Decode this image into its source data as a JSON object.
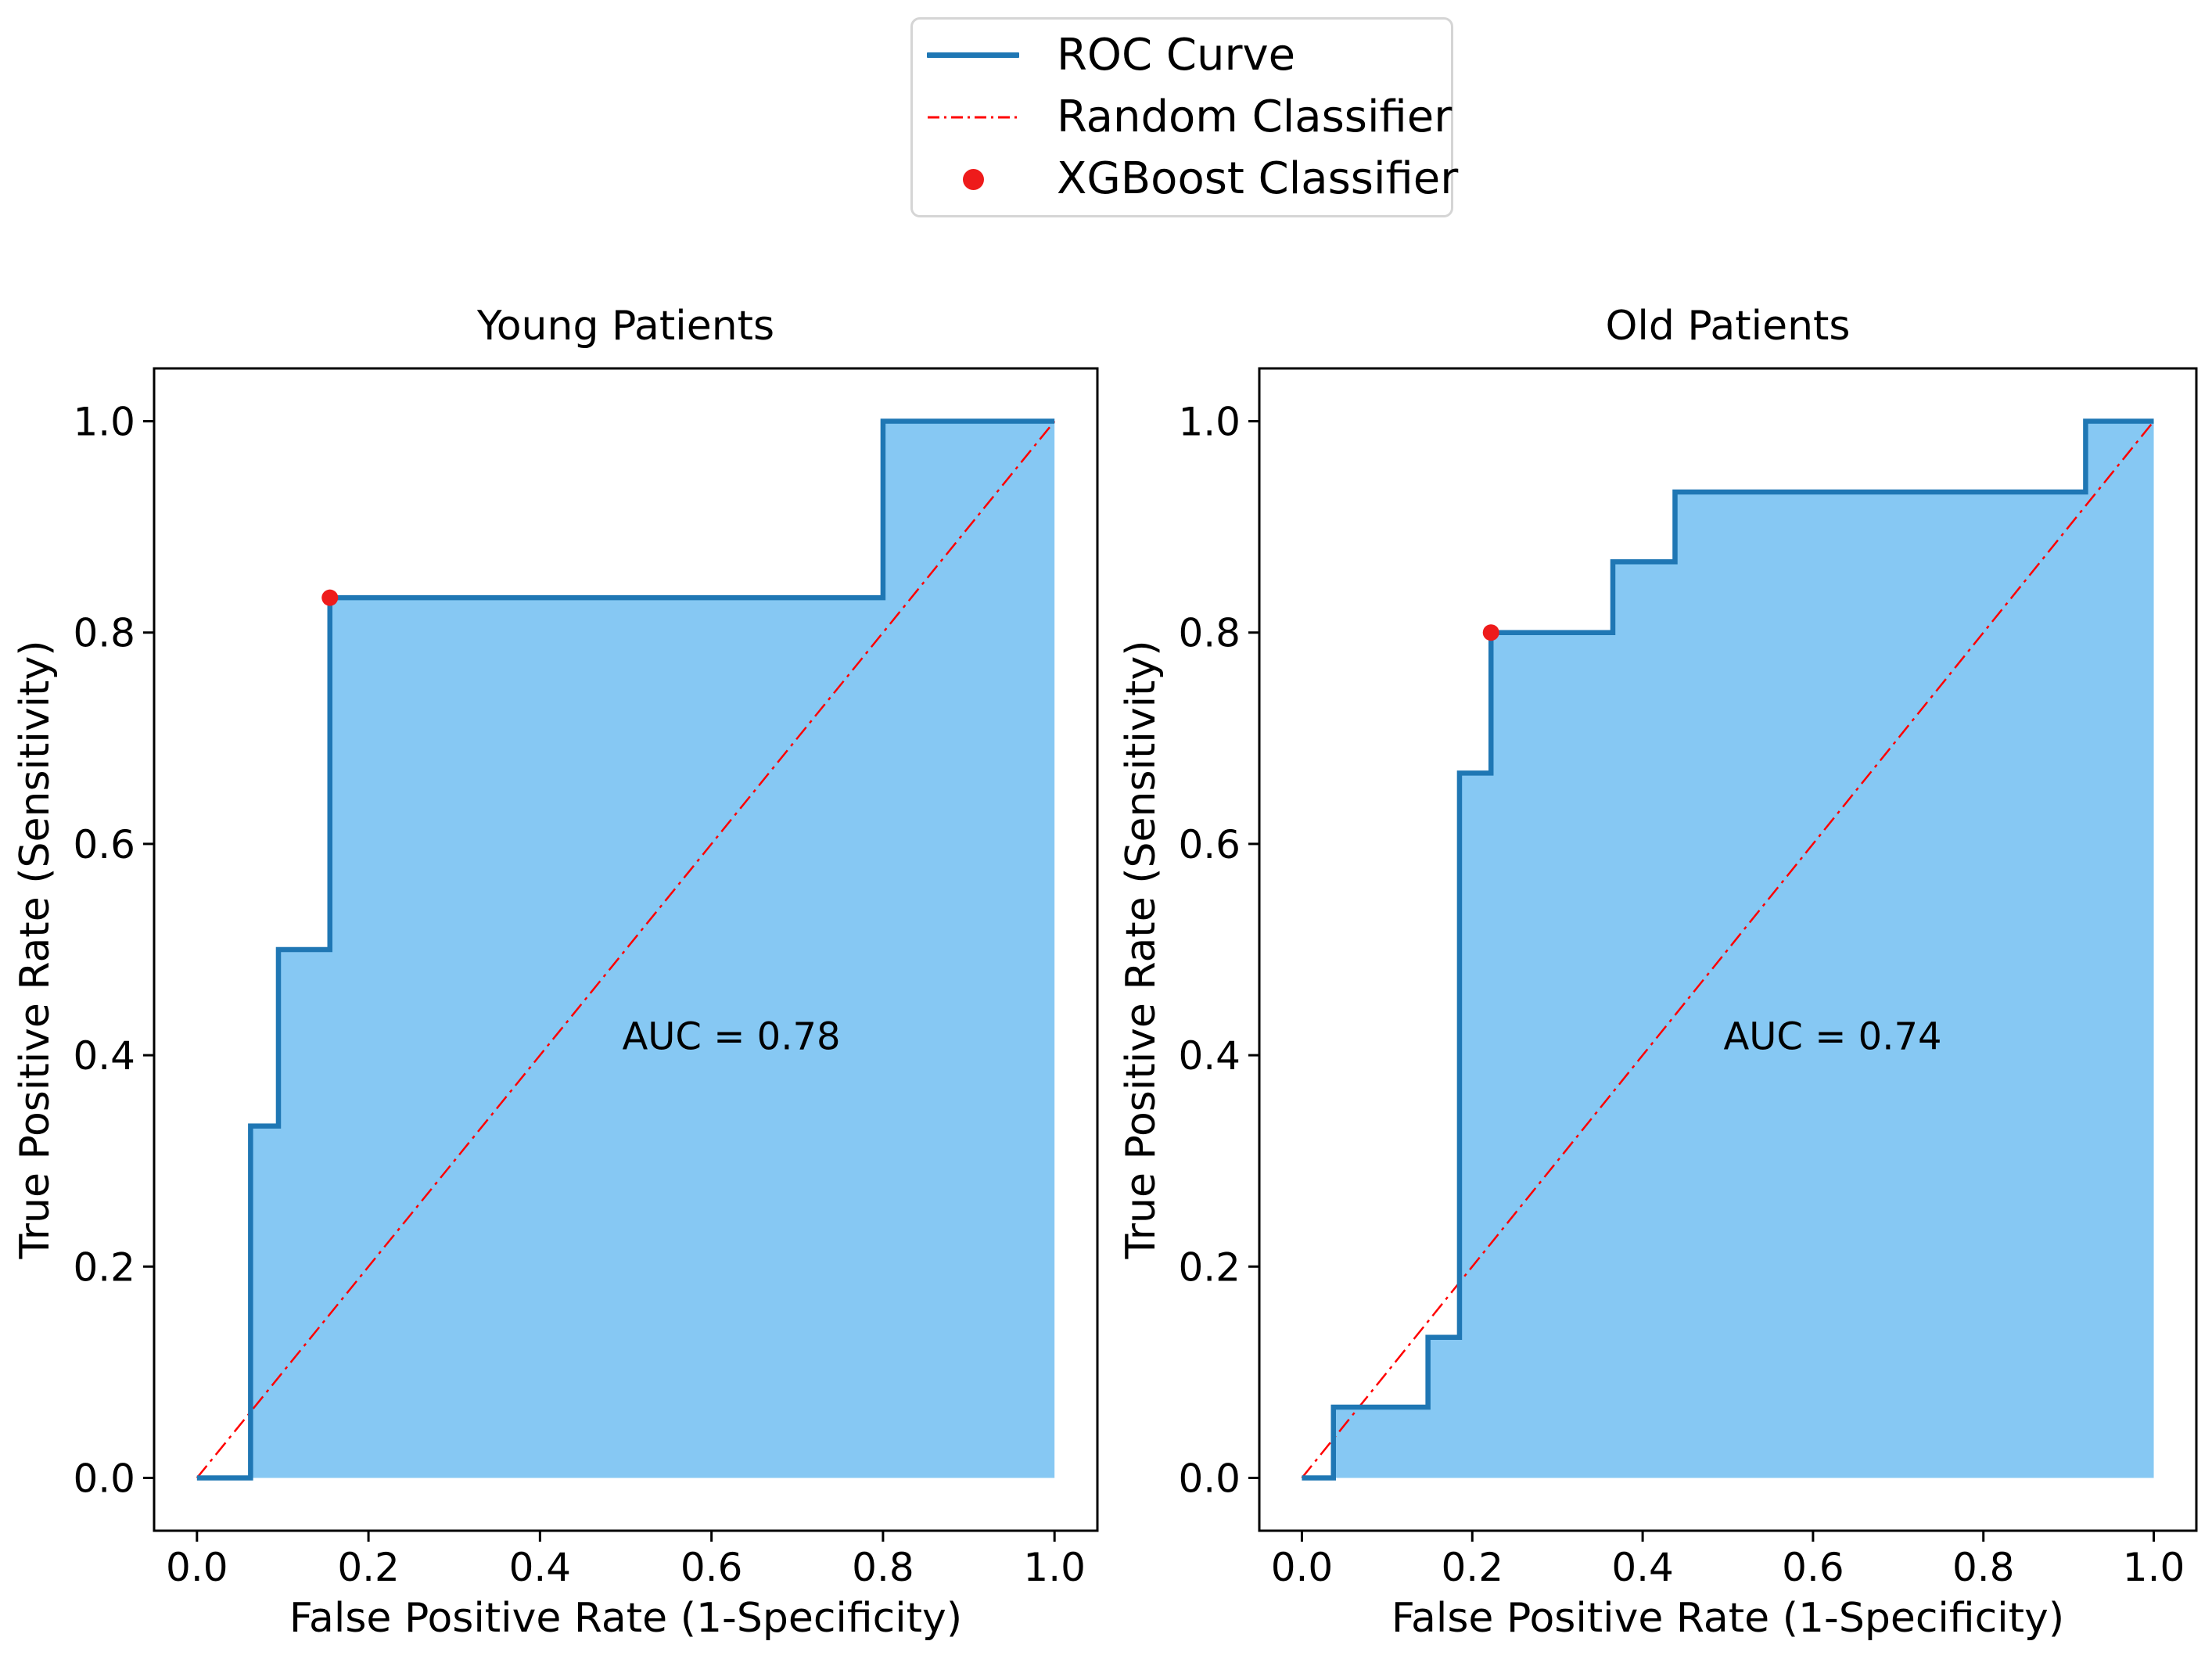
{
  "figure": {
    "legend": {
      "items": [
        {
          "label": "ROC Curve",
          "swatch": "solid-line-icon",
          "color": "#1F77B4"
        },
        {
          "label": "Random Classifier",
          "swatch": "dashdot-line-icon",
          "color": "#FF0000"
        },
        {
          "label": "XGBoost Classifier",
          "swatch": "dot-icon",
          "color": "#EE1B1B"
        }
      ]
    },
    "colors": {
      "roc_line": "#1F77B4",
      "roc_fill": "#86C8F3",
      "random_line": "#FF0000",
      "xgboost_point": "#EE1B1B",
      "axis": "#000000",
      "legend_border": "#D5D5D5"
    }
  },
  "chart_data": [
    {
      "type": "line",
      "title": "Young Patients",
      "xlabel": "False Positive Rate (1-Specificity)",
      "ylabel": "True Positive Rate (Sensitivity)",
      "xlim": [
        -0.05,
        1.05
      ],
      "ylim": [
        -0.05,
        1.05
      ],
      "grid": false,
      "xticks": [
        "0.0",
        "0.2",
        "0.4",
        "0.6",
        "0.8",
        "1.0"
      ],
      "yticks": [
        "0.0",
        "0.2",
        "0.4",
        "0.6",
        "0.8",
        "1.0"
      ],
      "auc": 0.78,
      "annotation": {
        "text": "AUC = 0.78",
        "x": 0.623,
        "y": 0.415
      },
      "series": [
        {
          "name": "ROC Curve",
          "type": "step-line",
          "filled": true,
          "points": [
            [
              0,
              0
            ],
            [
              0.0625,
              0
            ],
            [
              0.0625,
              0.333
            ],
            [
              0.095,
              0.333
            ],
            [
              0.095,
              0.5
            ],
            [
              0.155,
              0.5
            ],
            [
              0.155,
              0.833
            ],
            [
              0.8,
              0.833
            ],
            [
              0.8,
              1.0
            ],
            [
              1.0,
              1.0
            ]
          ]
        },
        {
          "name": "Random Classifier",
          "type": "dashdot-line",
          "points": [
            [
              0,
              0
            ],
            [
              1,
              1
            ]
          ]
        },
        {
          "name": "XGBoost Classifier",
          "type": "scatter",
          "points": [
            [
              0.155,
              0.833
            ]
          ]
        }
      ]
    },
    {
      "type": "line",
      "title": "Old Patients",
      "xlabel": "False Positive Rate (1-Specificity)",
      "ylabel": "True Positive Rate (Sensitivity)",
      "xlim": [
        -0.05,
        1.05
      ],
      "ylim": [
        -0.05,
        1.05
      ],
      "grid": false,
      "xticks": [
        "0.0",
        "0.2",
        "0.4",
        "0.6",
        "0.8",
        "1.0"
      ],
      "yticks": [
        "0.0",
        "0.2",
        "0.4",
        "0.6",
        "0.8",
        "1.0"
      ],
      "auc": 0.74,
      "annotation": {
        "text": "AUC = 0.74",
        "x": 0.623,
        "y": 0.415
      },
      "series": [
        {
          "name": "ROC Curve",
          "type": "step-line",
          "filled": true,
          "points": [
            [
              0,
              0
            ],
            [
              0.037,
              0
            ],
            [
              0.037,
              0.067
            ],
            [
              0.148,
              0.067
            ],
            [
              0.148,
              0.133
            ],
            [
              0.185,
              0.133
            ],
            [
              0.185,
              0.667
            ],
            [
              0.222,
              0.667
            ],
            [
              0.222,
              0.8
            ],
            [
              0.365,
              0.8
            ],
            [
              0.365,
              0.867
            ],
            [
              0.438,
              0.867
            ],
            [
              0.438,
              0.933
            ],
            [
              0.92,
              0.933
            ],
            [
              0.92,
              1.0
            ],
            [
              1.0,
              1.0
            ]
          ]
        },
        {
          "name": "Random Classifier",
          "type": "dashdot-line",
          "points": [
            [
              0,
              0
            ],
            [
              1,
              1
            ]
          ]
        },
        {
          "name": "XGBoost Classifier",
          "type": "scatter",
          "points": [
            [
              0.222,
              0.8
            ]
          ]
        }
      ]
    }
  ]
}
